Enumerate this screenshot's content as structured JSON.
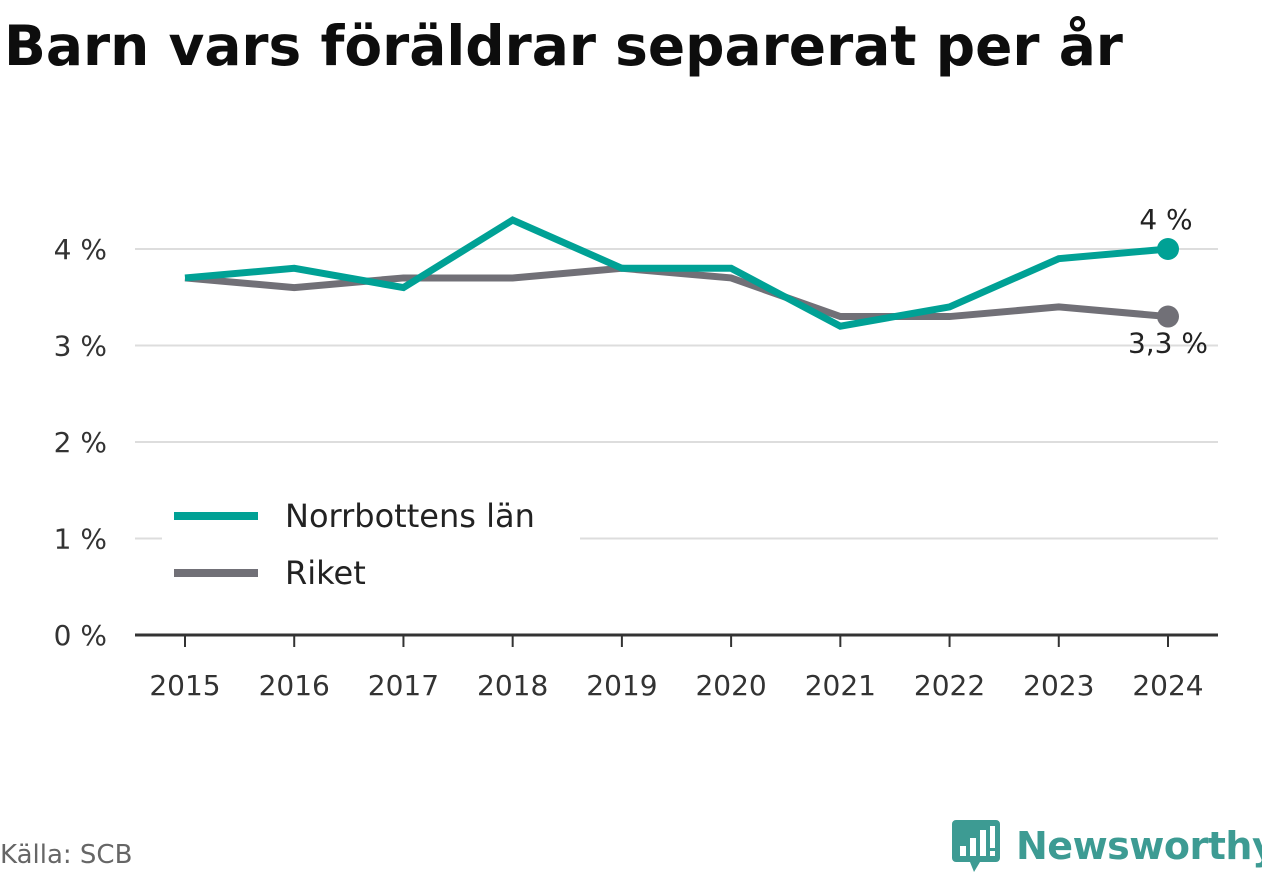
{
  "title": "Barn vars föräldrar separerat per år",
  "source": "Källa: SCB",
  "brand": {
    "name": "Newsworthy",
    "icon": "bar-chart-speech-bubble-icon",
    "color": "#3d9b93"
  },
  "chart_data": {
    "type": "line",
    "x": [
      "2015",
      "2016",
      "2017",
      "2018",
      "2019",
      "2020",
      "2021",
      "2022",
      "2023",
      "2024"
    ],
    "y_ticks": [
      {
        "value": 0,
        "label": "0 %"
      },
      {
        "value": 1,
        "label": "1 %"
      },
      {
        "value": 2,
        "label": "2 %"
      },
      {
        "value": 3,
        "label": "3 %"
      },
      {
        "value": 4,
        "label": "4 %"
      }
    ],
    "ylim": [
      0,
      4.6
    ],
    "grid": true,
    "legend_position": "lower-left",
    "series": [
      {
        "name": "Norrbottens län",
        "color": "#00a195",
        "values": [
          3.7,
          3.8,
          3.6,
          4.3,
          3.8,
          3.8,
          3.2,
          3.4,
          3.9,
          4.0
        ],
        "end_label": "4 %"
      },
      {
        "name": "Riket",
        "color": "#717077",
        "values": [
          3.7,
          3.6,
          3.7,
          3.7,
          3.8,
          3.7,
          3.3,
          3.3,
          3.4,
          3.3
        ],
        "end_label": "3,3 %"
      }
    ]
  }
}
